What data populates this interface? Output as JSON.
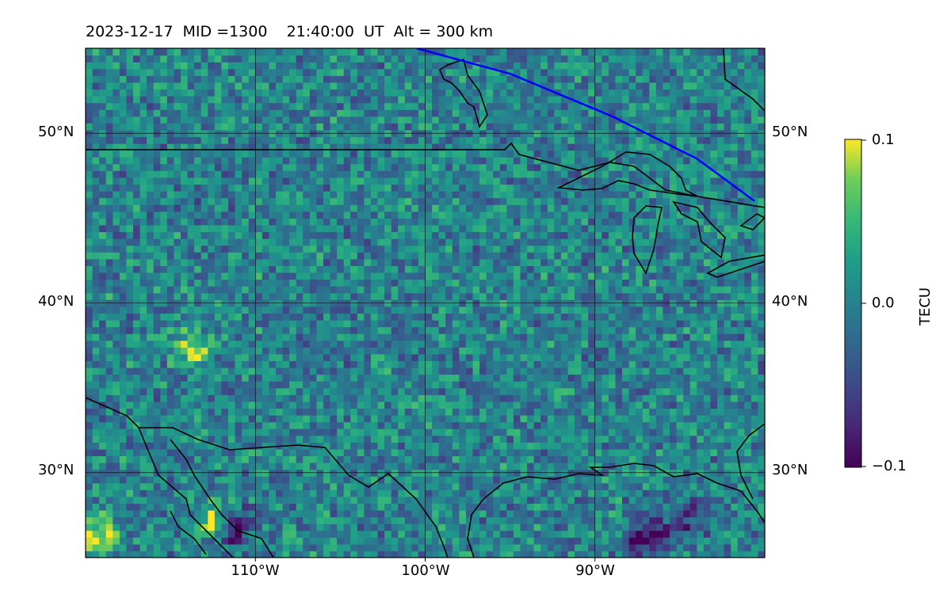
{
  "title": "2023-12-17  MID =1300    21:40:00  UT  Alt = 300 km",
  "map": {
    "type": "heatmap",
    "lon_range": [
      -120,
      -80
    ],
    "lat_range": [
      25,
      55
    ],
    "gridlines": true,
    "lat_ticks": [
      {
        "value": 30,
        "label": "30°N"
      },
      {
        "value": 40,
        "label": "40°N"
      },
      {
        "value": 50,
        "label": "50°N"
      }
    ],
    "lon_ticks": [
      {
        "value": -110,
        "label": "110°W"
      },
      {
        "value": -100,
        "label": "100°W"
      },
      {
        "value": -90,
        "label": "90°W"
      }
    ],
    "colormap": "viridis",
    "colors": {
      "low": "#440154",
      "mid": "#21918c",
      "high": "#fde725",
      "terminator": "#0000ff",
      "coastline": "#000000"
    }
  },
  "colorbar": {
    "label": "TECU",
    "min": -0.1,
    "max": 0.1,
    "ticks": [
      {
        "value": 0.1,
        "label": "0.1"
      },
      {
        "value": 0.0,
        "label": "0.0"
      },
      {
        "value": -0.1,
        "label": "−0.1"
      }
    ]
  },
  "chart_data": {
    "type": "heatmap",
    "description_values": "Detrended TEC perturbation field, mostly -0.05 to 0.05 TECU, with strong positive (+0.1) patches near 27N 112W and 26N 119W and negative (-0.1) patches near 26N 87W",
    "title": "2023-12-17  MID =1300    21:40:00  UT  Alt = 300 km",
    "xlim": [
      -120,
      -80
    ],
    "ylim": [
      25,
      55
    ],
    "zlim": [
      -0.1,
      0.1
    ],
    "zlabel": "TECU",
    "hotspots": [
      {
        "lon": -112.5,
        "lat": 27,
        "value": 0.1
      },
      {
        "lon": -119.5,
        "lat": 26,
        "value": 0.1
      },
      {
        "lon": -114,
        "lat": 37,
        "value": 0.08
      },
      {
        "lon": -111.5,
        "lat": 26.5,
        "value": -0.1
      },
      {
        "lon": -87,
        "lat": 26,
        "value": -0.1
      },
      {
        "lon": -85,
        "lat": 27,
        "value": -0.08
      }
    ],
    "terminator_line": [
      {
        "lon": -100.5,
        "lat": 55
      },
      {
        "lon": -95,
        "lat": 53.5
      },
      {
        "lon": -89,
        "lat": 51
      },
      {
        "lon": -84,
        "lat": 48.5
      },
      {
        "lon": -80.6,
        "lat": 46
      }
    ]
  }
}
